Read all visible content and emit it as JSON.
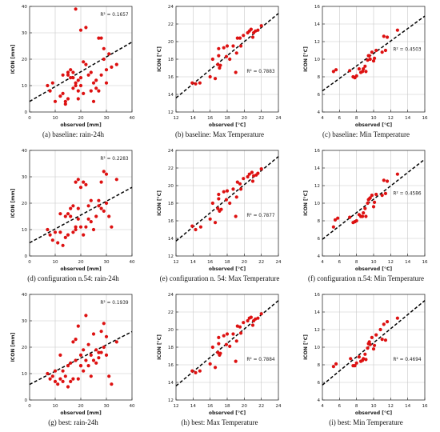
{
  "chart_data": [
    {
      "type": "scatter",
      "panel_id": "a",
      "caption": "(a)  baseline: rain-24h",
      "xlabel": "observed [mm]",
      "ylabel": "ICON [mm]",
      "xlim": [
        0,
        40
      ],
      "ylim": [
        0,
        40
      ],
      "xticks": [
        0,
        10,
        20,
        30,
        40
      ],
      "yticks": [
        0,
        10,
        20,
        30,
        40
      ],
      "r2_label": "R² = 0.1657",
      "r2_pos": "top-right",
      "regression": {
        "x": [
          0,
          40
        ],
        "y": [
          4.0,
          26.5
        ],
        "style": "dashed"
      },
      "grid": true,
      "point_color": "#dd1111",
      "x": [
        8,
        9,
        10,
        7,
        12,
        13,
        13,
        14,
        14,
        15,
        15,
        15,
        16,
        16,
        17,
        17,
        17,
        18,
        18,
        19,
        19,
        19,
        20,
        20,
        20,
        21,
        21,
        22,
        22,
        23,
        24,
        24,
        25,
        25,
        26,
        26,
        27,
        27,
        28,
        28,
        29,
        29,
        30,
        30,
        31,
        32,
        34,
        18
      ],
      "y": [
        8,
        11,
        4,
        10,
        6,
        7,
        14,
        4,
        3,
        5,
        14,
        15,
        16,
        13,
        13,
        15,
        9,
        10,
        11,
        5,
        8,
        12,
        13,
        10,
        31,
        7,
        19,
        18,
        32,
        14,
        8,
        15,
        4,
        11,
        9,
        12,
        28,
        8,
        28,
        14,
        20,
        24,
        16,
        11,
        22,
        17,
        18,
        39
      ]
    },
    {
      "type": "scatter",
      "panel_id": "b",
      "caption": "(b)  baseline: Max Temperature",
      "xlabel": "observed [°C]",
      "ylabel": "ICON [°C]",
      "xlim": [
        12,
        24
      ],
      "ylim": [
        12,
        24
      ],
      "xticks": [
        12,
        14,
        16,
        18,
        20,
        22,
        24
      ],
      "yticks": [
        12,
        14,
        16,
        18,
        20,
        22,
        24
      ],
      "r2_label": "R² = 0.7883",
      "r2_pos": "bottom-right",
      "regression": {
        "x": [
          12,
          24
        ],
        "y": [
          13.6,
          23.2
        ],
        "style": "dashed"
      },
      "grid": true,
      "point_color": "#dd1111",
      "x": [
        13.9,
        14.3,
        14.8,
        16.0,
        16.3,
        16.6,
        16.9,
        17.0,
        17.0,
        17.1,
        17.2,
        17.6,
        17.9,
        18.0,
        18.3,
        18.7,
        19.0,
        19.1,
        19.2,
        19.5,
        19.6,
        19.9,
        20.4,
        20.6,
        20.8,
        21.0,
        21.1,
        21.3,
        21.6,
        22.0
      ],
      "y": [
        15.3,
        15.2,
        15.3,
        16.0,
        18.0,
        15.8,
        17.4,
        18.4,
        19.2,
        17.0,
        17.3,
        19.3,
        18.3,
        19.5,
        18.0,
        19.5,
        16.5,
        18.7,
        20.4,
        20.4,
        19.5,
        20.7,
        21.0,
        21.2,
        21.4,
        20.5,
        21.0,
        21.2,
        21.3,
        21.8
      ]
    },
    {
      "type": "scatter",
      "panel_id": "c",
      "caption": "(c)  baseline: Min Temperature",
      "xlabel": "observed [°C]",
      "ylabel": "ICON [°C]",
      "xlim": [
        4,
        16
      ],
      "ylim": [
        4,
        16
      ],
      "xticks": [
        4,
        6,
        8,
        10,
        12,
        14,
        16
      ],
      "yticks": [
        4,
        6,
        8,
        10,
        12,
        14,
        16
      ],
      "r2_label": "R² = 0.4503",
      "r2_pos": "middle-right",
      "regression": {
        "x": [
          4,
          16
        ],
        "y": [
          6.4,
          14.9
        ],
        "style": "dashed"
      },
      "grid": true,
      "point_color": "#dd1111",
      "x": [
        5.3,
        5.6,
        7.2,
        7.6,
        7.8,
        8.0,
        8.3,
        8.5,
        8.7,
        8.8,
        9.0,
        9.1,
        9.3,
        9.4,
        9.5,
        9.6,
        9.8,
        10.0,
        10.1,
        10.3,
        11.0,
        11.2,
        11.4,
        11.6,
        12.8
      ],
      "y": [
        8.6,
        8.8,
        8.7,
        8.0,
        7.9,
        8.1,
        8.9,
        8.5,
        8.6,
        8.9,
        9.2,
        8.6,
        9.9,
        10.4,
        10.4,
        10.0,
        10.8,
        9.8,
        10.1,
        11.0,
        10.8,
        12.6,
        11.0,
        12.5,
        13.3
      ]
    },
    {
      "type": "scatter",
      "panel_id": "d",
      "caption": "(d)  configuration n.54: rain-24h",
      "xlabel": "observed [mm]",
      "ylabel": "ICON [mm]",
      "xlim": [
        0,
        40
      ],
      "ylim": [
        0,
        40
      ],
      "xticks": [
        0,
        10,
        20,
        30,
        40
      ],
      "yticks": [
        0,
        10,
        20,
        30,
        40
      ],
      "r2_label": "R² = 0.2283",
      "r2_pos": "top-right",
      "regression": {
        "x": [
          0,
          40
        ],
        "y": [
          5.0,
          26.0
        ],
        "style": "dashed"
      },
      "grid": true,
      "point_color": "#dd1111",
      "x": [
        7,
        8,
        9,
        10,
        11,
        12,
        12,
        13,
        14,
        14,
        15,
        15,
        16,
        16,
        17,
        17,
        18,
        18,
        19,
        19,
        20,
        20,
        21,
        21,
        22,
        22,
        23,
        23,
        24,
        24,
        25,
        26,
        27,
        27,
        28,
        28,
        29,
        29,
        30,
        30,
        31,
        32,
        34,
        19,
        18
      ],
      "y": [
        10,
        8,
        6,
        9,
        5,
        9,
        16,
        4,
        7,
        15,
        8,
        16,
        18,
        15,
        9,
        19,
        11,
        10,
        29,
        14,
        11,
        26,
        8,
        28,
        11,
        27,
        14,
        19,
        13,
        21,
        10,
        15,
        19,
        21,
        18,
        28,
        32,
        17,
        31,
        20,
        15,
        11,
        29,
        18,
        28
      ]
    },
    {
      "type": "scatter",
      "panel_id": "e",
      "caption": "(e)  configuration n. 54: Max Temperature",
      "xlabel": "observed [°C]",
      "ylabel": "ICON [°C]",
      "xlim": [
        12,
        24
      ],
      "ylim": [
        12,
        24
      ],
      "xticks": [
        12,
        14,
        16,
        18,
        20,
        22,
        24
      ],
      "yticks": [
        12,
        14,
        16,
        18,
        20,
        22,
        24
      ],
      "r2_label": "R² = 0.7877",
      "r2_pos": "bottom-right",
      "regression": {
        "x": [
          12,
          24
        ],
        "y": [
          13.7,
          23.3
        ],
        "style": "dashed"
      },
      "grid": true,
      "point_color": "#dd1111",
      "x": [
        13.9,
        14.3,
        14.9,
        16.0,
        16.3,
        16.6,
        16.9,
        17.0,
        17.0,
        17.1,
        17.3,
        17.6,
        17.9,
        18.0,
        18.3,
        18.7,
        19.0,
        19.1,
        19.2,
        19.5,
        19.6,
        19.9,
        20.4,
        20.6,
        20.9,
        21.0,
        21.1,
        21.4,
        21.6,
        22.0
      ],
      "y": [
        15.4,
        15.0,
        15.3,
        16.2,
        18.0,
        15.8,
        17.4,
        18.5,
        19.0,
        17.1,
        17.3,
        19.3,
        18.4,
        19.4,
        18.0,
        19.6,
        16.5,
        18.7,
        20.4,
        20.2,
        19.6,
        20.8,
        21.0,
        21.3,
        21.5,
        20.5,
        21.1,
        21.2,
        21.4,
        21.9
      ]
    },
    {
      "type": "scatter",
      "panel_id": "f",
      "caption": "(f)  configuration n.54: Min Temperature",
      "xlabel": "observed [°C]",
      "ylabel": "ICON [°C]",
      "xlim": [
        4,
        16
      ],
      "ylim": [
        4,
        16
      ],
      "xticks": [
        4,
        6,
        8,
        10,
        12,
        14,
        16
      ],
      "yticks": [
        4,
        6,
        8,
        10,
        12,
        14,
        16
      ],
      "r2_label": "R² = 0.4586",
      "r2_pos": "middle-right",
      "regression": {
        "x": [
          4,
          16
        ],
        "y": [
          5.9,
          15.0
        ],
        "style": "dashed"
      },
      "grid": true,
      "point_color": "#dd1111",
      "x": [
        5.3,
        5.5,
        5.8,
        7.2,
        7.6,
        7.8,
        8.0,
        8.3,
        8.5,
        8.7,
        8.8,
        9.0,
        9.1,
        9.3,
        9.4,
        9.5,
        9.6,
        9.8,
        10.0,
        10.1,
        10.3,
        11.0,
        11.2,
        11.4,
        11.6,
        12.8
      ],
      "y": [
        7.3,
        8.1,
        8.3,
        8.4,
        7.8,
        7.9,
        8.0,
        8.7,
        8.5,
        8.5,
        8.9,
        9.4,
        8.5,
        10.0,
        10.4,
        10.5,
        10.6,
        10.9,
        9.6,
        10.1,
        11.0,
        10.9,
        12.6,
        11.1,
        12.5,
        13.3
      ]
    },
    {
      "type": "scatter",
      "panel_id": "g",
      "caption": "(g)  best: rain-24h",
      "xlabel": "observed [mm]",
      "ylabel": "ICON [mm]",
      "xlim": [
        0,
        40
      ],
      "ylim": [
        0,
        40
      ],
      "xticks": [
        0,
        10,
        20,
        30,
        40
      ],
      "yticks": [
        0,
        10,
        20,
        30,
        40
      ],
      "r2_label": "R² = 0.1939",
      "r2_pos": "top-right",
      "regression": {
        "x": [
          0,
          40
        ],
        "y": [
          5.9,
          25.9
        ],
        "style": "dashed"
      },
      "grid": true,
      "point_color": "#dd1111",
      "x": [
        7,
        8,
        9,
        10,
        10,
        11,
        12,
        12,
        13,
        13,
        14,
        15,
        15,
        16,
        16,
        17,
        17,
        18,
        18,
        19,
        19,
        20,
        20,
        21,
        21,
        22,
        22,
        23,
        23,
        24,
        24,
        25,
        25,
        26,
        26,
        27,
        27,
        28,
        28,
        29,
        29,
        30,
        30,
        31,
        32,
        34,
        20
      ],
      "y": [
        10,
        8,
        9,
        7,
        11,
        6,
        8,
        17,
        11,
        7,
        9,
        5,
        13,
        14,
        7,
        22,
        8,
        23,
        15,
        8,
        28,
        13,
        17,
        11,
        19,
        32,
        15,
        13,
        21,
        9,
        17,
        15,
        25,
        14,
        19,
        16,
        18,
        26,
        18,
        29,
        20,
        17,
        24,
        9,
        6,
        22,
        13
      ]
    },
    {
      "type": "scatter",
      "panel_id": "h",
      "caption": "(h)  best: Max Temperature",
      "xlabel": "observed [°C]",
      "ylabel": "ICON [°C]",
      "xlim": [
        12,
        24
      ],
      "ylim": [
        12,
        24
      ],
      "xticks": [
        12,
        14,
        16,
        18,
        20,
        22,
        24
      ],
      "yticks": [
        12,
        14,
        16,
        18,
        20,
        22,
        24
      ],
      "r2_label": "R² = 0.7884",
      "r2_pos": "bottom-right",
      "regression": {
        "x": [
          12,
          24
        ],
        "y": [
          13.6,
          23.3
        ],
        "style": "dashed"
      },
      "grid": true,
      "point_color": "#dd1111",
      "x": [
        13.9,
        14.3,
        14.8,
        16.0,
        16.3,
        16.6,
        16.9,
        17.0,
        17.0,
        17.1,
        17.2,
        17.6,
        17.9,
        18.0,
        18.3,
        18.7,
        19.0,
        19.1,
        19.2,
        19.5,
        19.6,
        19.9,
        20.4,
        20.6,
        20.8,
        21.0,
        21.1,
        21.3,
        21.6,
        22.0
      ],
      "y": [
        15.3,
        15.1,
        15.3,
        16.1,
        18.0,
        15.7,
        17.4,
        18.4,
        19.1,
        17.1,
        17.3,
        19.3,
        18.3,
        19.5,
        18.1,
        19.5,
        16.4,
        18.7,
        20.4,
        20.3,
        19.6,
        20.8,
        21.0,
        21.3,
        21.4,
        20.5,
        21.0,
        21.2,
        21.3,
        21.8
      ]
    },
    {
      "type": "scatter",
      "panel_id": "i",
      "caption": "(i)  best: Min Temperature",
      "xlabel": "observed [°C]",
      "ylabel": "ICON [°C]",
      "xlim": [
        4,
        16
      ],
      "ylim": [
        4,
        16
      ],
      "xticks": [
        4,
        6,
        8,
        10,
        12,
        14,
        16
      ],
      "yticks": [
        4,
        6,
        8,
        10,
        12,
        14,
        16
      ],
      "r2_label": "R² = 0.4694",
      "r2_pos": "bottom-right",
      "regression": {
        "x": [
          4,
          16
        ],
        "y": [
          5.7,
          15.3
        ],
        "style": "dashed"
      },
      "grid": true,
      "point_color": "#dd1111",
      "x": [
        5.3,
        5.6,
        7.3,
        7.6,
        7.8,
        8.0,
        8.3,
        8.5,
        8.7,
        8.8,
        9.0,
        9.1,
        9.3,
        9.4,
        9.5,
        9.6,
        9.8,
        10.0,
        10.1,
        10.3,
        10.8,
        11.0,
        11.2,
        11.4,
        11.6,
        12.8
      ],
      "y": [
        7.8,
        8.1,
        8.7,
        7.9,
        7.9,
        8.2,
        8.9,
        8.4,
        8.5,
        8.7,
        9.2,
        8.6,
        9.9,
        10.4,
        10.6,
        10.3,
        11.1,
        9.8,
        10.2,
        11.4,
        12.0,
        10.9,
        12.6,
        10.8,
        12.9,
        13.3
      ]
    }
  ]
}
